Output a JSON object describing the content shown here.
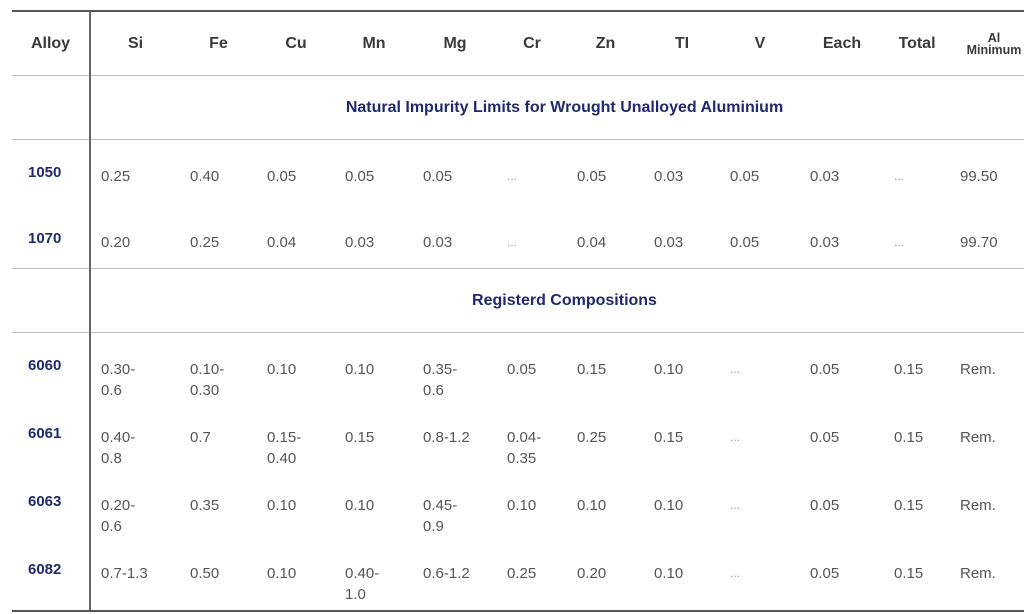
{
  "table": {
    "header": [
      "Alloy",
      "Si",
      "Fe",
      "Cu",
      "Mn",
      "Mg",
      "Cr",
      "Zn",
      "TI",
      "V",
      "Each",
      "Total",
      "Al Minimum"
    ],
    "sections": [
      {
        "title": "Natural Impurity Limits for Wrought Unalloyed Aluminium",
        "rows": [
          [
            "1050",
            "0.25",
            "0.40",
            "0.05",
            "0.05",
            "0.05",
            "...",
            "0.05",
            "0.03",
            "0.05",
            "0.03",
            "...",
            "99.50"
          ],
          [
            "1070",
            "0.20",
            "0.25",
            "0.04",
            "0.03",
            "0.03",
            "...",
            "0.04",
            "0.03",
            "0.05",
            "0.03",
            "...",
            "99.70"
          ]
        ]
      },
      {
        "title": "Registerd Compositions",
        "rows": [
          [
            "6060",
            "0.30-0.6",
            "0.10-0.30",
            "0.10",
            "0.10",
            "0.35-0.6",
            "0.05",
            "0.15",
            "0.10",
            "...",
            "0.05",
            "0.15",
            "Rem."
          ],
          [
            "6061",
            "0.40-0.8",
            "0.7",
            "0.15-0.40",
            "0.15",
            "0.8-1.2",
            "0.04-0.35",
            "0.25",
            "0.15",
            "...",
            "0.05",
            "0.15",
            "Rem."
          ],
          [
            "6063",
            "0.20-0.6",
            "0.35",
            "0.10",
            "0.10",
            "0.45-0.9",
            "0.10",
            "0.10",
            "0.10",
            "...",
            "0.05",
            "0.15",
            "Rem."
          ],
          [
            "6082",
            "0.7-1.3",
            "0.50",
            "0.10",
            "0.40-1.0",
            "0.6-1.2",
            "0.25",
            "0.20",
            "0.10",
            "...",
            "0.05",
            "0.15",
            "Rem."
          ]
        ]
      }
    ]
  }
}
